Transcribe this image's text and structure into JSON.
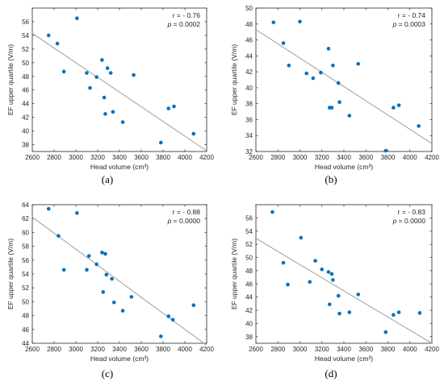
{
  "colors": {
    "point": "#0072bd",
    "fit_line": "#a6a6a6",
    "axes": "#262626"
  },
  "chart_data": [
    {
      "type": "scatter",
      "panel_label": "(a)",
      "xlabel": "Head volume (cm³)",
      "ylabel": "EF upper quartile (V/m)",
      "xlim": [
        2600,
        4200
      ],
      "ylim": [
        37,
        58
      ],
      "xticks": [
        2600,
        2800,
        3000,
        3200,
        3400,
        3600,
        3800,
        4000,
        4200
      ],
      "yticks": [
        38,
        40,
        42,
        44,
        46,
        48,
        50,
        52,
        54,
        56
      ],
      "r_text": "r = - 0.76",
      "p_label": "p",
      "p_text": " = 0.0002",
      "x": [
        2750,
        2830,
        2890,
        3010,
        3100,
        3130,
        3190,
        3240,
        3260,
        3270,
        3290,
        3320,
        3340,
        3430,
        3530,
        3780,
        3850,
        3900,
        4080
      ],
      "y": [
        54.0,
        52.8,
        48.7,
        56.5,
        48.5,
        46.3,
        47.9,
        50.4,
        44.9,
        42.5,
        49.2,
        48.5,
        42.8,
        41.3,
        48.2,
        38.3,
        43.3,
        43.6,
        39.6
      ],
      "fit": [
        [
          2600,
          54.3
        ],
        [
          4200,
          37.1
        ]
      ]
    },
    {
      "type": "scatter",
      "panel_label": "(b)",
      "xlabel": "Head volume (cm³)",
      "ylabel": "EF upper quartile (V/m)",
      "xlim": [
        2600,
        4200
      ],
      "ylim": [
        32,
        50
      ],
      "xticks": [
        2600,
        2800,
        3000,
        3200,
        3400,
        3600,
        3800,
        4000,
        4200
      ],
      "yticks": [
        32,
        34,
        36,
        38,
        40,
        42,
        44,
        46,
        48,
        50
      ],
      "r_text": "r = - 0.74",
      "p_label": "p",
      "p_text": " = 0.0003",
      "x": [
        2760,
        2850,
        2900,
        3000,
        3060,
        3120,
        3190,
        3260,
        3270,
        3290,
        3300,
        3350,
        3360,
        3450,
        3530,
        3780,
        3850,
        3900,
        4080
      ],
      "y": [
        48.2,
        45.6,
        42.8,
        48.3,
        41.8,
        41.2,
        41.9,
        44.9,
        37.5,
        37.5,
        42.8,
        40.6,
        38.2,
        36.5,
        43.0,
        32.1,
        37.5,
        37.8,
        35.2
      ],
      "fit": [
        [
          2600,
          47.3
        ],
        [
          4200,
          33.0
        ]
      ]
    },
    {
      "type": "scatter",
      "panel_label": "(c)",
      "xlabel": "Head volume (cm³)",
      "ylabel": "EF upper quartile (V/m)",
      "xlim": [
        2600,
        4200
      ],
      "ylim": [
        44,
        64
      ],
      "xticks": [
        2600,
        2800,
        3000,
        3200,
        3400,
        3600,
        3800,
        4000,
        4200
      ],
      "yticks": [
        44,
        46,
        48,
        50,
        52,
        54,
        56,
        58,
        60,
        62,
        64
      ],
      "r_text": "r = - 0.88",
      "p_label": "p",
      "p_text": " = 0.0000",
      "x": [
        2750,
        2840,
        2890,
        3010,
        3100,
        3120,
        3190,
        3240,
        3250,
        3270,
        3280,
        3330,
        3350,
        3430,
        3510,
        3780,
        3850,
        3890,
        4080
      ],
      "y": [
        63.4,
        59.5,
        54.6,
        62.8,
        54.6,
        56.6,
        55.4,
        57.1,
        51.4,
        56.9,
        53.9,
        53.3,
        49.9,
        48.7,
        50.7,
        45.0,
        47.9,
        47.4,
        49.5
      ],
      "fit": [
        [
          2600,
          62.2
        ],
        [
          4200,
          43.7
        ]
      ]
    },
    {
      "type": "scatter",
      "panel_label": "(d)",
      "xlabel": "Head volume (cm³)",
      "ylabel": "EF upper quartile (V/m)",
      "xlim": [
        2600,
        4200
      ],
      "ylim": [
        37,
        58
      ],
      "xticks": [
        2600,
        2800,
        3000,
        3200,
        3400,
        3600,
        3800,
        4000,
        4200
      ],
      "yticks": [
        38,
        40,
        42,
        44,
        46,
        48,
        50,
        52,
        54,
        56
      ],
      "r_text": "r = - 0.83",
      "p_label": "p",
      "p_text": " = 0.0000",
      "x": [
        2750,
        2850,
        2890,
        3010,
        3090,
        3140,
        3200,
        3260,
        3270,
        3290,
        3300,
        3350,
        3360,
        3450,
        3530,
        3780,
        3850,
        3900,
        4090
      ],
      "y": [
        56.9,
        49.2,
        45.9,
        53.0,
        46.3,
        49.5,
        48.2,
        47.8,
        42.9,
        47.5,
        46.6,
        44.2,
        41.5,
        41.7,
        44.4,
        38.7,
        41.3,
        41.7,
        41.6
      ],
      "fit": [
        [
          2600,
          52.9
        ],
        [
          4200,
          37.0
        ]
      ]
    }
  ]
}
